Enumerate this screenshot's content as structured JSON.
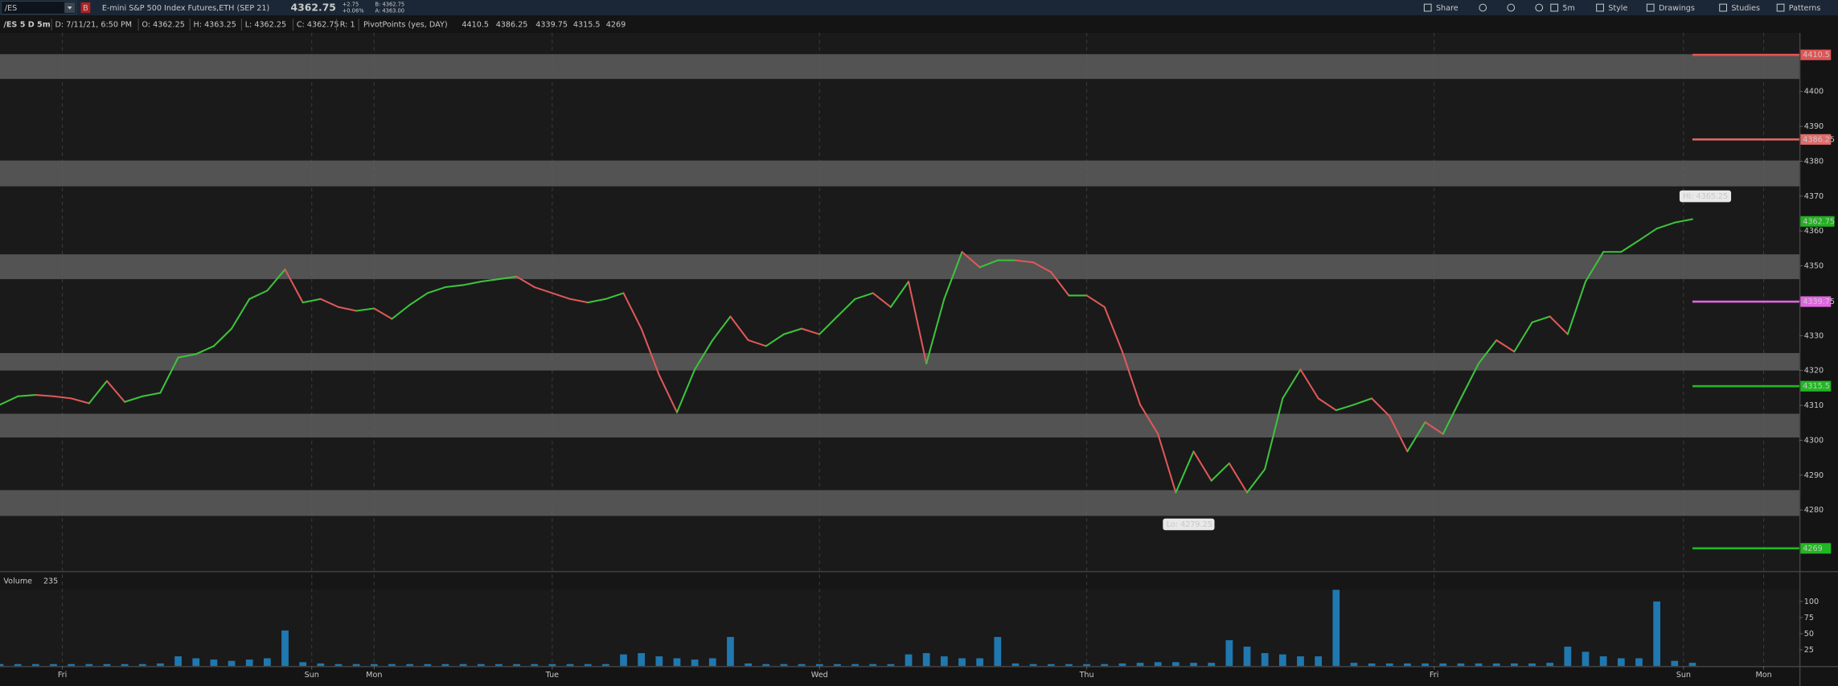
{
  "toolbar": {
    "symbol": "/ES",
    "badge": "B",
    "description": "E-mini S&P 500 Index Futures,ETH (SEP 21)",
    "change": "+2.75",
    "change_pct": "+0.06%",
    "bid": "B: 4362.75",
    "ask": "A: 4363.00",
    "buttons": [
      "Share",
      "5m",
      "Style",
      "Drawings",
      "Studies",
      "Patterns"
    ]
  },
  "chart_data": [
    {
      "type": "line",
      "title": "/ES 5 D 5m",
      "info": [
        "D: 7/11/21, 6:50 PM",
        "O: 4362.25",
        "H: 4363.25",
        "L: 4362.25",
        "C: 4362.75",
        "R: 1"
      ],
      "study": "PivotPoints (yes, DAY)",
      "up_color": "#3cc43c",
      "down_color": "#e05858",
      "values": [
        4310.2,
        4312.6,
        4313,
        4312.6,
        4312,
        4310.6,
        4317,
        4311,
        4312.6,
        4313.6,
        4323.7,
        4324.7,
        4327,
        4332,
        4340.5,
        4342.9,
        4349,
        4339.5,
        4340.5,
        4338.2,
        4337.1,
        4337.8,
        4334.8,
        4338.8,
        4342.2,
        4343.9,
        4344.5,
        4345.5,
        4346.2,
        4346.9,
        4343.9,
        4342.2,
        4340.5,
        4339.5,
        4340.5,
        4342.2,
        4332,
        4318.7,
        4308,
        4320.3,
        4328.7,
        4335.5,
        4328.7,
        4327,
        4330.4,
        4332,
        4330.4,
        4335.5,
        4340.5,
        4342.2,
        4338.2,
        4345.5,
        4322,
        4340.5,
        4354,
        4349.6,
        4351.6,
        4351.6,
        4351,
        4348.2,
        4341.5,
        4341.5,
        4338.2,
        4325.4,
        4310.2,
        4301.8,
        4285,
        4296.8,
        4288.4,
        4293.4,
        4285,
        4291.7,
        4312,
        4320.3,
        4312,
        4308.6,
        4310.2,
        4312,
        4306.9,
        4296.8,
        4305.2,
        4301.8,
        4312,
        4322,
        4328.7,
        4325.4,
        4333.8,
        4335.5,
        4330.4,
        4345.5,
        4354,
        4354,
        4357.3,
        4360.7,
        4362.4,
        4363.4
      ],
      "xlim": [
        0,
        101
      ],
      "xticks": [
        {
          "value": 3.5,
          "label": "Fri"
        },
        {
          "value": 17.5,
          "label": "Sun"
        },
        {
          "value": 21,
          "label": "Mon"
        },
        {
          "value": 31,
          "label": "Tue"
        },
        {
          "value": 46,
          "label": "Wed"
        },
        {
          "value": 61,
          "label": "Thu"
        },
        {
          "value": 80.5,
          "label": "Fri"
        },
        {
          "value": 94.5,
          "label": "Sun"
        },
        {
          "value": 99,
          "label": "Mon"
        }
      ],
      "ylim": [
        4262.5,
        4416.8
      ],
      "yticks": [
        4280,
        4290,
        4300,
        4310,
        4320,
        4330,
        4340,
        4350,
        4360,
        4370,
        4380,
        4390,
        4400
      ],
      "zones": [
        [
          4403.6,
          4410.7
        ],
        [
          4372.8,
          4380.2
        ],
        [
          4346.2,
          4353.3
        ],
        [
          4320,
          4325
        ],
        [
          4300.8,
          4307.6
        ],
        [
          4278.3,
          4285.7
        ]
      ],
      "zone_color": "#5e5e5e",
      "pivots": [
        {
          "value": 4410.5,
          "color": "#e05555"
        },
        {
          "value": 4386.25,
          "color": "#e06a6a"
        },
        {
          "value": 4339.75,
          "color": "#e066e0"
        },
        {
          "value": 4315.5,
          "color": "#20b820"
        },
        {
          "value": 4269,
          "color": "#20b820"
        }
      ],
      "high": {
        "value": 4365.25,
        "label": "Hi: 4365.25"
      },
      "low": {
        "value": 4279.25,
        "label": "Lo: 4279.25"
      },
      "last_price": 4362.75,
      "last_color": "#22b022"
    },
    {
      "type": "bar",
      "title": "Volume",
      "last_value": 235,
      "color": "#1f78b0",
      "values": [
        3,
        3,
        3,
        3,
        3,
        3,
        3,
        3,
        3,
        4,
        15,
        12,
        10,
        8,
        10,
        12,
        55,
        6,
        4,
        3,
        3,
        3,
        3,
        3,
        3,
        3,
        3,
        3,
        3,
        3,
        3,
        3,
        3,
        3,
        3,
        18,
        20,
        15,
        12,
        10,
        12,
        45,
        4,
        3,
        3,
        3,
        3,
        3,
        3,
        3,
        3,
        18,
        20,
        15,
        12,
        12,
        45,
        4,
        3,
        3,
        3,
        3,
        3,
        4,
        5,
        6,
        6,
        5,
        5,
        40,
        30,
        20,
        18,
        15,
        15,
        130,
        5,
        4,
        4,
        4,
        4,
        4,
        4,
        4,
        4,
        4,
        4,
        5,
        30,
        22,
        15,
        12,
        12,
        100,
        8,
        5
      ],
      "xlim": [
        0,
        101
      ],
      "ylim": [
        0,
        118
      ],
      "yticks": [
        25,
        50,
        75,
        100
      ]
    }
  ]
}
